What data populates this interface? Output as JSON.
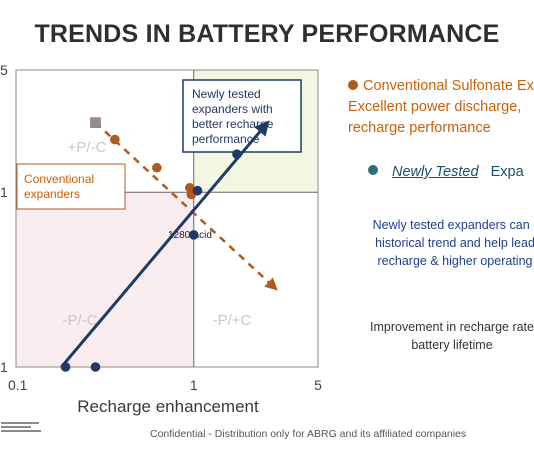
{
  "page": {
    "title": "TRENDS IN BATTERY PERFORMANCE"
  },
  "chart_data": {
    "type": "scatter",
    "title": "TRENDS IN BATTERY PERFORMANCE",
    "xlabel": "Recharge enhancement",
    "ylabel": "",
    "xscale": "log",
    "yscale": "log",
    "xlim": [
      0.1,
      5
    ],
    "ylim": [
      0.1,
      5
    ],
    "xticks": [
      "0.1",
      "1",
      "5"
    ],
    "yticks": [
      "1",
      "1",
      "5"
    ],
    "reference_lines": {
      "x": 1,
      "y": 1
    },
    "quadrant_labels": [
      "+P/-C",
      "-P/-C",
      "-P/+C"
    ],
    "callouts": {
      "conventional": "Conventional expanders",
      "newly_tested": "Newly tested expanders with better recharge performance",
      "acid": "1280 Acid"
    },
    "colors": {
      "conventional": "#b05a1c",
      "newly_tested": "#1f3a66",
      "upper_right_fill": "#f2f7e2",
      "lower_left_fill": "#f8ecee"
    },
    "series": [
      {
        "name": "Conventional Sulfonate Expanders",
        "color": "#b05a1c",
        "marker": "circle",
        "points": [
          [
            0.36,
            2.0
          ],
          [
            0.62,
            1.38
          ],
          [
            0.95,
            1.06
          ],
          [
            0.97,
            0.97
          ]
        ]
      },
      {
        "name": "Newly Tested Expanders",
        "color": "#1f3a66",
        "marker": "circle",
        "points": [
          [
            0.19,
            0.1
          ],
          [
            0.28,
            0.1
          ],
          [
            1.0,
            0.57
          ],
          [
            1.05,
            1.02
          ],
          [
            1.75,
            1.65
          ]
        ]
      }
    ],
    "conventional_start_marker": [
      0.28,
      2.5
    ],
    "trend_arrows": [
      {
        "name": "conventional-trend",
        "style": "dashed",
        "from": [
          0.28,
          2.5
        ],
        "to": [
          2.9,
          0.28
        ]
      },
      {
        "name": "newly-tested-trend",
        "style": "solid",
        "from": [
          0.18,
          0.1
        ],
        "to": [
          2.6,
          2.5
        ]
      }
    ]
  },
  "legend": {
    "conventional_line1": "Conventional Sulfonate Ex",
    "conventional_line2": "Excellent power discharge,",
    "conventional_line3": "recharge performance",
    "new_italic": "Newly Tested",
    "new_rest": "Expa"
  },
  "notes": {
    "para1_line1": "Newly tested expanders can r",
    "para1_line2": "historical trend and help lead",
    "para1_line3": "recharge & higher operating",
    "para2_line1": "Improvement in recharge rate",
    "para2_line2": "battery lifetime"
  },
  "footer": "Confidential  - Distribution only for ABRG and its affiliated companies"
}
